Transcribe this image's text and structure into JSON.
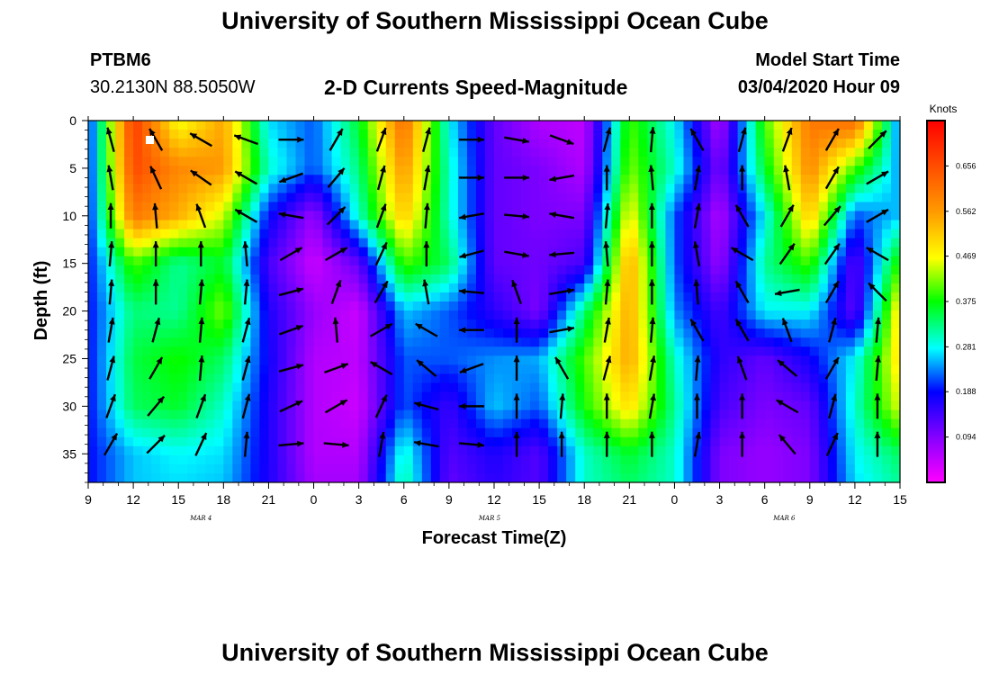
{
  "header": {
    "title": "University of Southern Mississippi Ocean Cube",
    "station": "PTBM6",
    "coords": "30.2130N 88.5050W",
    "subtitle": "2-D Currents Speed-Magnitude",
    "model_start_label": "Model Start Time",
    "model_start_value": "03/04/2020 Hour 09"
  },
  "footer": {
    "title": "University of Southern Mississippi Ocean Cube"
  },
  "chart_data": {
    "type": "heatmap",
    "xlabel": "Forecast Time(Z)",
    "ylabel": "Depth (ft)",
    "x_tick_labels": [
      "9",
      "12",
      "15",
      "18",
      "21",
      "0",
      "3",
      "6",
      "9",
      "12",
      "15",
      "18",
      "21",
      "0",
      "3",
      "6",
      "9",
      "12",
      "15"
    ],
    "x_hours": [
      0,
      3,
      6,
      9,
      12,
      15,
      18,
      21,
      24,
      27,
      30,
      33,
      36,
      39,
      42,
      45,
      48,
      51,
      54
    ],
    "xlim_hours": [
      0,
      54
    ],
    "date_labels": [
      {
        "label": "MAR 4",
        "hour": 7.5
      },
      {
        "label": "MAR 5",
        "hour": 26.7
      },
      {
        "label": "MAR 6",
        "hour": 46.3
      }
    ],
    "y_ticks": [
      0,
      5,
      10,
      15,
      20,
      25,
      30,
      35
    ],
    "ylim": [
      0,
      38
    ],
    "y_inverted": true,
    "colorbar": {
      "units": "Knots",
      "ticks": [
        0.656,
        0.562,
        0.469,
        0.375,
        0.281,
        0.188,
        0.094
      ],
      "range": [
        0,
        0.75
      ]
    },
    "speed_grid": {
      "x_hours": [
        0,
        3,
        6,
        9,
        12,
        15,
        18,
        21,
        24,
        27,
        30,
        33,
        36,
        39,
        42,
        45,
        48,
        51,
        54
      ],
      "depths_ft": [
        0,
        5,
        10,
        15,
        20,
        25,
        30,
        35,
        38
      ],
      "values": [
        [
          0.19,
          0.68,
          0.46,
          0.55,
          0.27,
          0.22,
          0.36,
          0.62,
          0.28,
          0.12,
          0.06,
          0.05,
          0.4,
          0.28,
          0.06,
          0.4,
          0.6,
          0.62,
          0.22
        ],
        [
          0.19,
          0.66,
          0.58,
          0.56,
          0.3,
          0.22,
          0.33,
          0.57,
          0.3,
          0.12,
          0.1,
          0.06,
          0.42,
          0.3,
          0.1,
          0.36,
          0.58,
          0.4,
          0.24
        ],
        [
          0.19,
          0.6,
          0.54,
          0.45,
          0.19,
          0.08,
          0.3,
          0.52,
          0.3,
          0.12,
          0.1,
          0.1,
          0.48,
          0.22,
          0.06,
          0.28,
          0.52,
          0.22,
          0.26
        ],
        [
          0.19,
          0.4,
          0.32,
          0.36,
          0.14,
          0.04,
          0.12,
          0.4,
          0.34,
          0.12,
          0.11,
          0.14,
          0.55,
          0.22,
          0.08,
          0.32,
          0.4,
          0.12,
          0.4
        ],
        [
          0.19,
          0.33,
          0.32,
          0.42,
          0.17,
          0.08,
          0.04,
          0.26,
          0.22,
          0.16,
          0.1,
          0.33,
          0.55,
          0.24,
          0.14,
          0.28,
          0.28,
          0.12,
          0.5
        ],
        [
          0.19,
          0.35,
          0.38,
          0.34,
          0.18,
          0.06,
          0.05,
          0.22,
          0.22,
          0.24,
          0.25,
          0.4,
          0.55,
          0.3,
          0.16,
          0.12,
          0.18,
          0.28,
          0.5
        ],
        [
          0.19,
          0.34,
          0.36,
          0.3,
          0.17,
          0.06,
          0.04,
          0.22,
          0.15,
          0.26,
          0.22,
          0.38,
          0.5,
          0.32,
          0.14,
          0.1,
          0.12,
          0.3,
          0.46
        ],
        [
          0.19,
          0.26,
          0.28,
          0.27,
          0.17,
          0.06,
          0.06,
          0.3,
          0.13,
          0.17,
          0.13,
          0.3,
          0.36,
          0.3,
          0.1,
          0.08,
          0.1,
          0.28,
          0.34
        ],
        [
          0.19,
          0.26,
          0.27,
          0.26,
          0.17,
          0.07,
          0.07,
          0.32,
          0.12,
          0.16,
          0.13,
          0.3,
          0.34,
          0.3,
          0.1,
          0.08,
          0.1,
          0.27,
          0.32
        ]
      ]
    },
    "vector_grid": {
      "x_hours": [
        1.5,
        4.5,
        7.5,
        10.5,
        13.5,
        16.5,
        19.5,
        22.5,
        25.5,
        28.5,
        31.5,
        34.5,
        37.5,
        40.5,
        43.5,
        46.5,
        49.5,
        52.5
      ],
      "depths_ft": [
        2,
        6,
        10,
        14,
        18,
        22,
        26,
        30,
        34
      ],
      "direction_deg": [
        [
          345,
          330,
          300,
          290,
          90,
          30,
          20,
          15,
          90,
          100,
          110,
          15,
          5,
          330,
          15,
          20,
          30,
          45
        ],
        [
          350,
          335,
          305,
          300,
          250,
          40,
          15,
          10,
          90,
          90,
          260,
          0,
          355,
          10,
          0,
          350,
          30,
          60
        ],
        [
          0,
          355,
          340,
          300,
          280,
          45,
          20,
          5,
          260,
          95,
          280,
          5,
          0,
          10,
          330,
          30,
          40,
          60
        ],
        [
          5,
          0,
          0,
          355,
          60,
          60,
          25,
          0,
          255,
          100,
          265,
          355,
          0,
          350,
          300,
          35,
          35,
          300
        ],
        [
          5,
          0,
          5,
          5,
          75,
          20,
          30,
          350,
          275,
          340,
          80,
          5,
          0,
          355,
          330,
          260,
          30,
          315
        ],
        [
          10,
          15,
          5,
          15,
          70,
          355,
          60,
          300,
          270,
          0,
          80,
          10,
          5,
          330,
          330,
          340,
          15,
          5
        ],
        [
          15,
          30,
          5,
          15,
          75,
          70,
          300,
          310,
          250,
          0,
          330,
          15,
          10,
          5,
          340,
          310,
          30,
          5
        ],
        [
          20,
          40,
          20,
          15,
          65,
          60,
          25,
          285,
          270,
          0,
          5,
          0,
          10,
          0,
          0,
          300,
          15,
          0
        ],
        [
          30,
          45,
          25,
          5,
          85,
          95,
          10,
          280,
          95,
          0,
          0,
          0,
          0,
          10,
          0,
          320,
          25,
          0
        ]
      ]
    }
  }
}
